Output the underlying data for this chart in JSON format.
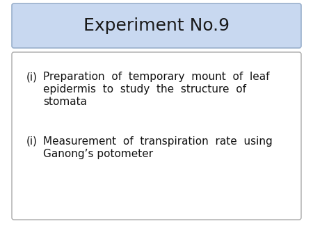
{
  "title": "Experiment No.9",
  "title_box_color_top": "#dce8f8",
  "title_box_color": "#c8d8f0",
  "title_box_edge_color": "#9ab0cc",
  "title_fontsize": 18,
  "title_font_color": "#1a1a1a",
  "background_color": "#ffffff",
  "content_box_edge_color": "#aaaaaa",
  "content_box_face_color": "#ffffff",
  "item1_label": "(i)",
  "item1_line1": "Preparation  of  temporary  mount  of  leaf",
  "item1_line2": "epidermis  to  study  the  structure  of",
  "item1_line3": "stomata",
  "item2_label": "(i)",
  "item2_line1": "Measurement  of  transpiration  rate  using",
  "item2_line2": "Ganong’s potometer",
  "content_fontsize": 11,
  "content_font_color": "#111111",
  "fig_width": 4.5,
  "fig_height": 3.38,
  "fig_dpi": 100
}
